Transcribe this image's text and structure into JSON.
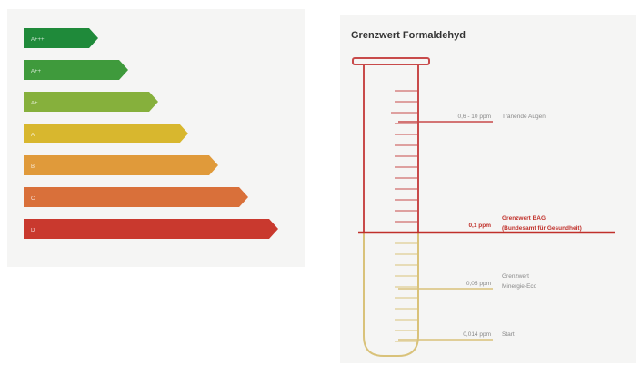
{
  "energy_scale": {
    "bars": [
      {
        "label": "A+++",
        "color": "#1f8a3a"
      },
      {
        "label": "A++",
        "color": "#3f9a3c"
      },
      {
        "label": "A+",
        "color": "#86b03c"
      },
      {
        "label": "A",
        "color": "#d8b72e"
      },
      {
        "label": "B",
        "color": "#e09a3a"
      },
      {
        "label": "C",
        "color": "#d9703a"
      },
      {
        "label": "D",
        "color": "#c9392e"
      }
    ]
  },
  "tube": {
    "title": "Grenzwert Formaldehyd",
    "colors": {
      "upper": "#c84a4a",
      "lower": "#d9c27a",
      "limit": "#c0302a",
      "label": "#888888"
    },
    "markers": [
      {
        "value": "0,6 - 10 ppm",
        "description": [
          "Tränende Augen"
        ],
        "zone": "upper"
      },
      {
        "value": "0,1 ppm",
        "description": [
          "Grenzwert BAG",
          "(Bundesamt für Gesundheit)"
        ],
        "zone": "limit"
      },
      {
        "value": "0,05 ppm",
        "description": [
          "Grenzwert",
          "Minergie-Eco"
        ],
        "zone": "lower"
      },
      {
        "value": "0,014 ppm",
        "description": [
          "Start"
        ],
        "zone": "lower"
      }
    ]
  }
}
